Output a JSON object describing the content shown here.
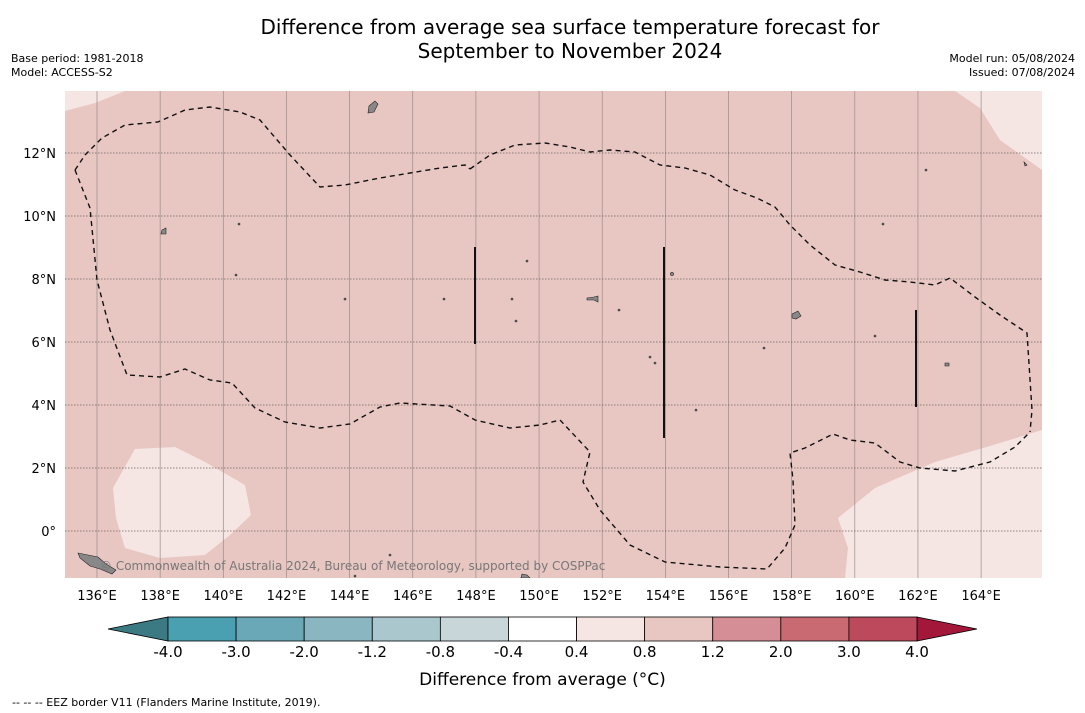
{
  "title": {
    "line1": "Difference from average sea surface temperature forecast for",
    "line2": "September to November 2024"
  },
  "meta": {
    "base_period": "Base period: 1981-2018",
    "model": "Model: ACCESS-S2",
    "model_run": "Model run: 05/08/2024",
    "issued": "Issued: 07/08/2024"
  },
  "map": {
    "lon_labels": [
      "136°E",
      "138°E",
      "140°E",
      "142°E",
      "144°E",
      "146°E",
      "148°E",
      "150°E",
      "152°E",
      "154°E",
      "156°E",
      "158°E",
      "160°E",
      "162°E",
      "164°E"
    ],
    "lat_labels": [
      "12°N",
      "10°N",
      "8°N",
      "6°N",
      "4°N",
      "2°N",
      "0°"
    ],
    "copyright": "© Commonwealth of Australia 2024, Bureau of Meteorology, supported by COSPPac",
    "colors": {
      "fill_main": "#e8c7c3",
      "fill_light": "#f5e6e4",
      "land": "#888888",
      "eez": "#111111",
      "grid": "#9a8b89"
    }
  },
  "colorbar": {
    "ticks": [
      "-4.0",
      "-3.0",
      "-2.0",
      "-1.2",
      "-0.8",
      "-0.4",
      "0.4",
      "0.8",
      "1.2",
      "2.0",
      "3.0",
      "4.0"
    ],
    "under_color": "#3b7a82",
    "over_color": "#a3183a",
    "colors": [
      "#4a9fb0",
      "#6aa8b8",
      "#8ab6c1",
      "#a9c7cd",
      "#c8d6da",
      "#ffffff",
      "#f5e6e4",
      "#e8c7c3",
      "#d58e96",
      "#c96a72",
      "#bd4a5c"
    ],
    "label": "Difference from average (°C)"
  },
  "footnote": "--  --  -- EEZ border V11 (Flanders Marine Institute, 2019)."
}
